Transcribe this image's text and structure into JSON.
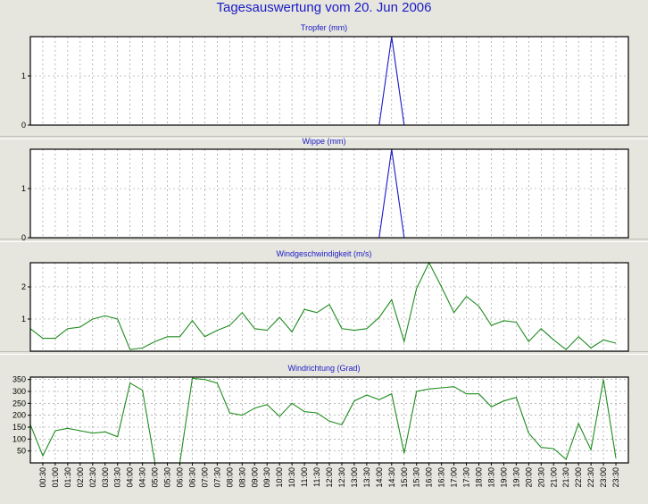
{
  "title": "Tagesauswertung vom 20. Jun 2006",
  "time_labels": [
    "00:30",
    "01:00",
    "01:30",
    "02:00",
    "02:30",
    "03:00",
    "03:30",
    "04:00",
    "04:30",
    "05:00",
    "05:30",
    "06:00",
    "06:30",
    "07:00",
    "07:30",
    "08:00",
    "08:30",
    "09:00",
    "09:30",
    "10:00",
    "10:30",
    "11:00",
    "11:30",
    "12:00",
    "12:30",
    "13:00",
    "13:30",
    "14:00",
    "14:30",
    "15:00",
    "15:30",
    "16:00",
    "16:30",
    "17:00",
    "17:30",
    "18:00",
    "18:30",
    "19:00",
    "19:30",
    "20:00",
    "20:30",
    "21:00",
    "21:30",
    "22:00",
    "22:30",
    "23:00",
    "23:30"
  ],
  "colors": {
    "rain": "#1a1ac8",
    "wind": "#1e8c1e",
    "title": "#1a1ac8",
    "background": "#e6e6de"
  },
  "chart_data": [
    {
      "type": "line",
      "title": "Tropfer (mm)",
      "ylim": [
        0,
        1.8
      ],
      "yticks": [
        0,
        1
      ],
      "grid": true,
      "color": "#1a1ac8",
      "x": [
        "00:00",
        "00:30",
        "01:00",
        "01:30",
        "02:00",
        "02:30",
        "03:00",
        "03:30",
        "04:00",
        "04:30",
        "05:00",
        "05:30",
        "06:00",
        "06:30",
        "07:00",
        "07:30",
        "08:00",
        "08:30",
        "09:00",
        "09:30",
        "10:00",
        "10:30",
        "11:00",
        "11:30",
        "12:00",
        "12:30",
        "13:00",
        "13:30",
        "14:00",
        "14:30",
        "15:00",
        "15:30",
        "16:00",
        "16:30",
        "17:00",
        "17:30",
        "18:00",
        "18:30",
        "19:00",
        "19:30",
        "20:00",
        "20:30",
        "21:00",
        "21:30",
        "22:00",
        "22:30",
        "23:00",
        "23:30"
      ],
      "values": [
        null,
        null,
        null,
        null,
        null,
        null,
        null,
        null,
        null,
        null,
        null,
        null,
        null,
        null,
        null,
        null,
        null,
        null,
        null,
        null,
        null,
        null,
        null,
        null,
        null,
        null,
        null,
        null,
        0,
        1.8,
        0,
        null,
        null,
        null,
        null,
        null,
        null,
        null,
        null,
        null,
        null,
        null,
        null,
        null,
        null,
        null,
        null,
        null
      ]
    },
    {
      "type": "line",
      "title": "Wippe (mm)",
      "ylim": [
        0,
        1.8
      ],
      "yticks": [
        0,
        1
      ],
      "grid": true,
      "color": "#1a1ac8",
      "x": [
        "00:00",
        "00:30",
        "01:00",
        "01:30",
        "02:00",
        "02:30",
        "03:00",
        "03:30",
        "04:00",
        "04:30",
        "05:00",
        "05:30",
        "06:00",
        "06:30",
        "07:00",
        "07:30",
        "08:00",
        "08:30",
        "09:00",
        "09:30",
        "10:00",
        "10:30",
        "11:00",
        "11:30",
        "12:00",
        "12:30",
        "13:00",
        "13:30",
        "14:00",
        "14:30",
        "15:00",
        "15:30",
        "16:00",
        "16:30",
        "17:00",
        "17:30",
        "18:00",
        "18:30",
        "19:00",
        "19:30",
        "20:00",
        "20:30",
        "21:00",
        "21:30",
        "22:00",
        "22:30",
        "23:00",
        "23:30"
      ],
      "values": [
        null,
        null,
        null,
        null,
        null,
        null,
        null,
        null,
        null,
        null,
        null,
        null,
        null,
        null,
        null,
        null,
        null,
        null,
        null,
        null,
        null,
        null,
        null,
        null,
        null,
        null,
        null,
        null,
        0,
        1.8,
        0,
        null,
        null,
        null,
        null,
        null,
        null,
        null,
        null,
        null,
        null,
        null,
        null,
        null,
        null,
        null,
        null,
        null
      ]
    },
    {
      "type": "line",
      "title": "Windgeschwindigkeit (m/s)",
      "ylim": [
        0,
        2.75
      ],
      "yticks": [
        1,
        2
      ],
      "grid": true,
      "color": "#1e8c1e",
      "x": [
        "00:00",
        "00:30",
        "01:00",
        "01:30",
        "02:00",
        "02:30",
        "03:00",
        "03:30",
        "04:00",
        "04:30",
        "05:00",
        "05:30",
        "06:00",
        "06:30",
        "07:00",
        "07:30",
        "08:00",
        "08:30",
        "09:00",
        "09:30",
        "10:00",
        "10:30",
        "11:00",
        "11:30",
        "12:00",
        "12:30",
        "13:00",
        "13:30",
        "14:00",
        "14:30",
        "15:00",
        "15:30",
        "16:00",
        "16:30",
        "17:00",
        "17:30",
        "18:00",
        "18:30",
        "19:00",
        "19:30",
        "20:00",
        "20:30",
        "21:00",
        "21:30",
        "22:00",
        "22:30",
        "23:00",
        "23:30"
      ],
      "values": [
        0.7,
        0.4,
        0.4,
        0.7,
        0.75,
        1.0,
        1.1,
        1.0,
        0.05,
        0.1,
        0.3,
        0.45,
        0.45,
        0.95,
        0.45,
        0.65,
        0.8,
        1.2,
        0.7,
        0.65,
        1.05,
        0.6,
        1.3,
        1.2,
        1.45,
        0.7,
        0.65,
        0.7,
        1.05,
        1.6,
        0.3,
        1.95,
        2.75,
        2.0,
        1.2,
        1.7,
        1.4,
        0.8,
        0.95,
        0.9,
        0.3,
        0.7,
        0.35,
        0.05,
        0.45,
        0.1,
        0.35,
        0.25
      ]
    },
    {
      "type": "line",
      "title": "Windrichtung (Grad)",
      "ylim": [
        0,
        360
      ],
      "yticks": [
        50,
        100,
        150,
        200,
        250,
        300,
        350
      ],
      "grid": true,
      "color": "#1e8c1e",
      "x": [
        "00:00",
        "00:30",
        "01:00",
        "01:30",
        "02:00",
        "02:30",
        "03:00",
        "03:30",
        "04:00",
        "04:30",
        "05:00",
        "05:30",
        "06:00",
        "06:30",
        "07:00",
        "07:30",
        "08:00",
        "08:30",
        "09:00",
        "09:30",
        "10:00",
        "10:30",
        "11:00",
        "11:30",
        "12:00",
        "12:30",
        "13:00",
        "13:30",
        "14:00",
        "14:30",
        "15:00",
        "15:30",
        "16:00",
        "16:30",
        "17:00",
        "17:30",
        "18:00",
        "18:30",
        "19:00",
        "19:30",
        "20:00",
        "20:30",
        "21:00",
        "21:30",
        "22:00",
        "22:30",
        "23:00",
        "23:30"
      ],
      "values": [
        160,
        30,
        135,
        145,
        135,
        125,
        130,
        110,
        335,
        305,
        0,
        0,
        0,
        355,
        350,
        335,
        210,
        200,
        230,
        245,
        195,
        250,
        215,
        210,
        175,
        160,
        260,
        285,
        265,
        290,
        40,
        300,
        310,
        315,
        320,
        290,
        290,
        235,
        260,
        275,
        125,
        65,
        60,
        15,
        165,
        55,
        350,
        20
      ]
    }
  ]
}
